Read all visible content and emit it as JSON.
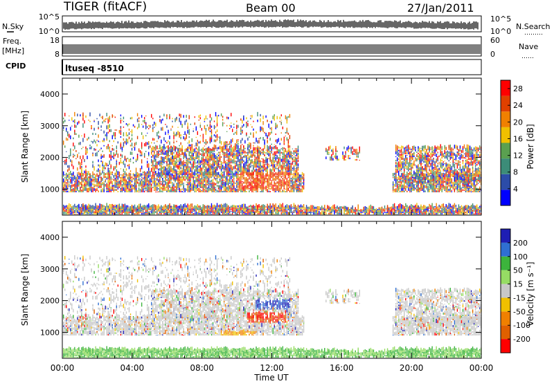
{
  "header": {
    "station": "TIGER (fitACF)",
    "beam": "Beam 00",
    "date": "27/Jan/2011"
  },
  "left_labels": {
    "nsky": "N.Sky",
    "freq": "Freq.",
    "freq_unit": "[MHz]",
    "cpid": "CPID"
  },
  "right_labels": {
    "nsearch": "N.Search",
    "nsearch_dots": "………",
    "nave": "Nave",
    "nave_dots": "……"
  },
  "noise_panel": {
    "y_ticks": [
      "10^5",
      "10^0"
    ],
    "right_ticks": [
      "10^5",
      "10^0"
    ]
  },
  "freq_panel": {
    "y_ticks": [
      "18",
      "8"
    ],
    "right_ticks": [
      "60",
      "0"
    ]
  },
  "cpid_panel": {
    "text": "ltuseq -8510"
  },
  "colors": {
    "power": [
      "#0000ff",
      "#2c4ca8",
      "#3c8c78",
      "#5aa050",
      "#f0c000",
      "#f08000",
      "#e04000",
      "#ff0000"
    ],
    "velocity": [
      "#1e1eb4",
      "#2f6fd2",
      "#3cb43c",
      "#96dc64",
      "#c8c8c8",
      "#f0c000",
      "#f08000",
      "#e06000",
      "#ff0000"
    ]
  },
  "chart_data": [
    {
      "type": "heatmap",
      "title": "Power",
      "ylabel": "Slant Range [km]",
      "ylim": [
        180,
        4500
      ],
      "y_ticks": [
        1000,
        2000,
        3000,
        4000
      ],
      "x_ticks": [
        "00:00",
        "04:00",
        "08:00",
        "12:00",
        "16:00",
        "20:00",
        "00:00"
      ],
      "xlim_hours": [
        0,
        24
      ],
      "colorbar": {
        "label": "Power [dB]",
        "ticks": [
          4,
          8,
          12,
          16,
          20,
          24,
          28
        ],
        "range": [
          0,
          30
        ]
      }
    },
    {
      "type": "heatmap",
      "title": "Velocity",
      "ylabel": "Slant Range [km]",
      "ylim": [
        180,
        4500
      ],
      "y_ticks": [
        1000,
        2000,
        3000,
        4000
      ],
      "x_ticks": [
        "00:00",
        "04:00",
        "08:00",
        "12:00",
        "16:00",
        "20:00",
        "00:00"
      ],
      "xlabel": "Time UT",
      "xlim_hours": [
        0,
        24
      ],
      "colorbar": {
        "label": "Velocity [m s⁻¹]",
        "ticks": [
          200,
          100,
          50,
          15,
          -15,
          -50,
          -100,
          -200
        ]
      }
    }
  ]
}
